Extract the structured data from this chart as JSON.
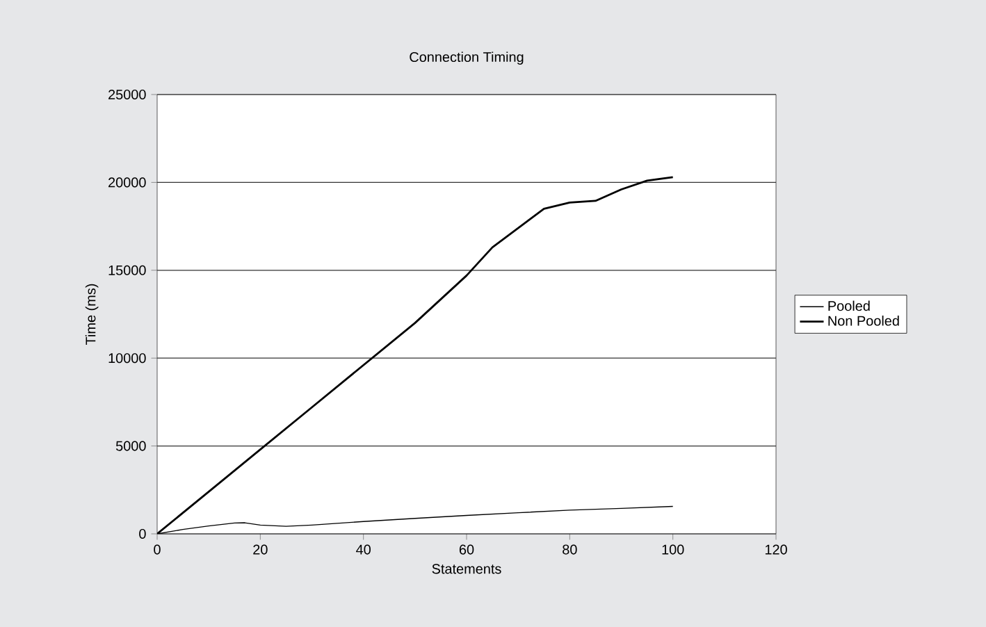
{
  "chart_data": {
    "type": "line",
    "title": "Connection Timing",
    "xlabel": "Statements",
    "ylabel": "Time (ms)",
    "xlim": [
      0,
      120
    ],
    "xticks": [
      0,
      20,
      40,
      60,
      80,
      100,
      120
    ],
    "ylim": [
      0,
      25000
    ],
    "yticks": [
      0,
      5000,
      10000,
      15000,
      20000,
      25000
    ],
    "grid": "y",
    "legend": "right",
    "marker": "none",
    "line_style": "solid",
    "series": [
      {
        "name": "Pooled",
        "color": "#000000",
        "x": [
          0,
          5,
          10,
          15,
          17,
          20,
          25,
          30,
          40,
          50,
          60,
          70,
          80,
          90,
          100
        ],
        "values": [
          0,
          250,
          450,
          620,
          630,
          500,
          430,
          500,
          700,
          880,
          1050,
          1200,
          1350,
          1450,
          1560
        ]
      },
      {
        "name": "Non Pooled",
        "color": "#000000",
        "x": [
          0,
          10,
          20,
          30,
          40,
          50,
          60,
          65,
          70,
          75,
          80,
          85,
          90,
          95,
          100
        ],
        "values": [
          0,
          2400,
          4800,
          7200,
          9600,
          12000,
          14700,
          16300,
          17400,
          18500,
          18850,
          18950,
          19600,
          20100,
          20300
        ]
      }
    ]
  }
}
